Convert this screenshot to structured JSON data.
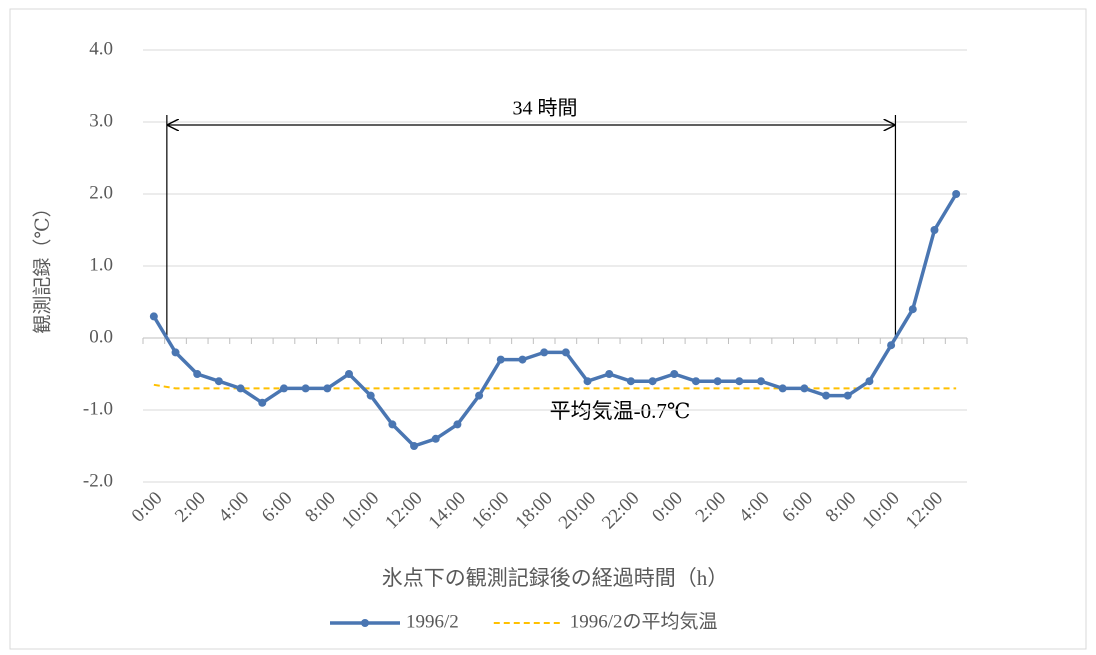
{
  "chart_data": {
    "type": "line",
    "y_label": "観測記録（℃）",
    "x_label": "氷点下の観測記録後の経過時間（h）",
    "annotations": [
      "34 時間",
      "平均気温-0.7℃"
    ],
    "categories": [
      "0:00",
      null,
      "2:00",
      null,
      "4:00",
      null,
      "6:00",
      null,
      "8:00",
      null,
      "10:00",
      null,
      "12:00",
      null,
      "14:00",
      null,
      "16:00",
      null,
      "18:00",
      null,
      "20:00",
      null,
      "22:00",
      null,
      "0:00",
      null,
      "2:00",
      null,
      "4:00",
      null,
      "6:00",
      null,
      "8:00",
      null,
      "10:00",
      null,
      "12:00",
      null
    ],
    "series": [
      {
        "name": "1996/2",
        "color": "#4a76b2",
        "dash": false,
        "markers": true,
        "values": [
          0.3,
          -0.2,
          -0.5,
          -0.6,
          -0.7,
          -0.9,
          -0.7,
          -0.7,
          -0.7,
          -0.5,
          -0.8,
          -1.2,
          -1.5,
          -1.4,
          -1.2,
          -0.8,
          -0.3,
          -0.3,
          -0.2,
          -0.2,
          -0.6,
          -0.5,
          -0.6,
          -0.6,
          -0.5,
          -0.6,
          -0.6,
          -0.6,
          -0.6,
          -0.7,
          -0.7,
          -0.8,
          -0.8,
          -0.6,
          -0.1,
          0.4,
          1.5,
          2.0
        ]
      },
      {
        "name": "1996/2の平均気温",
        "color": "#ffc000",
        "dash": true,
        "markers": false,
        "values": [
          -0.65,
          -0.7,
          -0.7,
          -0.7,
          -0.7,
          -0.7,
          -0.7,
          -0.7,
          -0.7,
          -0.7,
          -0.7,
          -0.7,
          -0.7,
          -0.7,
          -0.7,
          -0.7,
          -0.7,
          -0.7,
          -0.7,
          -0.7,
          -0.7,
          -0.7,
          -0.7,
          -0.7,
          -0.7,
          -0.7,
          -0.7,
          -0.7,
          -0.7,
          -0.7,
          -0.7,
          -0.7,
          -0.7,
          -0.7,
          -0.7,
          -0.7,
          -0.7,
          -0.7
        ]
      }
    ],
    "ylim": [
      -2,
      4
    ],
    "yticks": [
      {
        "value": -2,
        "label": "-2.0"
      },
      {
        "value": -1,
        "label": "-1.0"
      },
      {
        "value": 0,
        "label": "0.0"
      },
      {
        "value": 1,
        "label": "1.0"
      },
      {
        "value": 2,
        "label": "2.0"
      },
      {
        "value": 3,
        "label": "3.0"
      },
      {
        "value": 4,
        "label": "4.0"
      }
    ],
    "grid": true
  }
}
